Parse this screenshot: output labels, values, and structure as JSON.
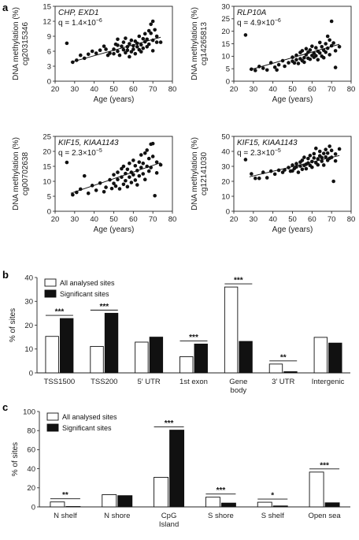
{
  "figure": {
    "panel_letters": [
      "a",
      "b",
      "c"
    ]
  },
  "chart_data": [
    {
      "panel": "a",
      "type": "scatter",
      "gene": "CHP, EXD1",
      "q_label": "q = 1.4×10",
      "q_exp": "−6",
      "xlabel": "Age (years)",
      "ylabel": "DNA methylation (%)",
      "ylabel2": "cg20315346",
      "xlim": [
        20,
        80
      ],
      "ylim": [
        0,
        15
      ],
      "xticks": [
        20,
        30,
        40,
        50,
        60,
        70,
        80
      ],
      "yticks": [
        0,
        3,
        6,
        9,
        12,
        15
      ],
      "trend": {
        "x": [
          28,
          74
        ],
        "y": [
          3.8,
          8.8
        ]
      },
      "points": [
        [
          26,
          7.6
        ],
        [
          29,
          3.8
        ],
        [
          31,
          4.2
        ],
        [
          33,
          5.2
        ],
        [
          35,
          4.6
        ],
        [
          37,
          5.4
        ],
        [
          39,
          6.0
        ],
        [
          41,
          5.6
        ],
        [
          43,
          6.2
        ],
        [
          45,
          7.0
        ],
        [
          46,
          6.4
        ],
        [
          47,
          5.2
        ],
        [
          48,
          5.6
        ],
        [
          50,
          6.4
        ],
        [
          50,
          5.5
        ],
        [
          51,
          7.4
        ],
        [
          52,
          6.0
        ],
        [
          52,
          8.4
        ],
        [
          53,
          5.2
        ],
        [
          54,
          7.0
        ],
        [
          55,
          6.3
        ],
        [
          55,
          7.8
        ],
        [
          56,
          5.7
        ],
        [
          56,
          8.6
        ],
        [
          57,
          6.9
        ],
        [
          57,
          6.2
        ],
        [
          58,
          7.5
        ],
        [
          59,
          5.9
        ],
        [
          59,
          8.2
        ],
        [
          60,
          6.4
        ],
        [
          60,
          7.1
        ],
        [
          61,
          5.5
        ],
        [
          61,
          8.0
        ],
        [
          62,
          6.9
        ],
        [
          62,
          7.6
        ],
        [
          63,
          6.3
        ],
        [
          63,
          9.0
        ],
        [
          64,
          7.3
        ],
        [
          64,
          5.9
        ],
        [
          65,
          8.5
        ],
        [
          65,
          6.6
        ],
        [
          66,
          7.9
        ],
        [
          66,
          9.5
        ],
        [
          67,
          6.9
        ],
        [
          67,
          8.4
        ],
        [
          68,
          10.1
        ],
        [
          68,
          7.4
        ],
        [
          69,
          11.4
        ],
        [
          69,
          9.6
        ],
        [
          70,
          12.0
        ],
        [
          70,
          8.2
        ],
        [
          70,
          6.1
        ],
        [
          71,
          10.3
        ],
        [
          72,
          7.8
        ],
        [
          72,
          9.0
        ],
        [
          74,
          7.8
        ],
        [
          58,
          4.9
        ],
        [
          52,
          7.2
        ]
      ]
    },
    {
      "panel": "a",
      "type": "scatter",
      "gene": "RLP10A",
      "q_label": "q = 4.9×10",
      "q_exp": "−6",
      "xlabel": "Age (years)",
      "ylabel": "DNA methylation (%)",
      "ylabel2": "cg14265813",
      "xlim": [
        20,
        80
      ],
      "ylim": [
        0,
        30
      ],
      "xticks": [
        20,
        30,
        40,
        50,
        60,
        70,
        80
      ],
      "yticks": [
        0,
        5,
        10,
        15,
        20,
        25,
        30
      ],
      "trend": {
        "x": [
          28,
          74
        ],
        "y": [
          4.5,
          14.8
        ]
      },
      "points": [
        [
          26,
          18.5
        ],
        [
          29,
          4.8
        ],
        [
          31,
          4.3
        ],
        [
          33,
          5.9
        ],
        [
          35,
          5.2
        ],
        [
          37,
          4.5
        ],
        [
          39,
          7.4
        ],
        [
          41,
          5.6
        ],
        [
          42,
          4.5
        ],
        [
          43,
          6.6
        ],
        [
          45,
          8.2
        ],
        [
          46,
          6.0
        ],
        [
          48,
          7.4
        ],
        [
          50,
          9.6
        ],
        [
          50,
          8.0
        ],
        [
          51,
          7.3
        ],
        [
          52,
          10.4
        ],
        [
          52,
          8.6
        ],
        [
          53,
          7.1
        ],
        [
          54,
          11.5
        ],
        [
          54,
          9.0
        ],
        [
          55,
          8.2
        ],
        [
          55,
          12.2
        ],
        [
          56,
          9.4
        ],
        [
          56,
          7.6
        ],
        [
          57,
          10.6
        ],
        [
          57,
          13.0
        ],
        [
          58,
          9.2
        ],
        [
          58,
          11.6
        ],
        [
          59,
          8.8
        ],
        [
          59,
          12.5
        ],
        [
          60,
          10.3
        ],
        [
          60,
          14.0
        ],
        [
          61,
          9.6
        ],
        [
          61,
          11.2
        ],
        [
          62,
          13.4
        ],
        [
          62,
          10.2
        ],
        [
          63,
          12.0
        ],
        [
          63,
          8.6
        ],
        [
          64,
          11.3
        ],
        [
          64,
          15.5
        ],
        [
          65,
          10.0
        ],
        [
          65,
          13.8
        ],
        [
          66,
          12.4
        ],
        [
          66,
          9.4
        ],
        [
          67,
          15.0
        ],
        [
          67,
          11.6
        ],
        [
          68,
          18.0
        ],
        [
          68,
          13.2
        ],
        [
          69,
          16.5
        ],
        [
          69,
          10.6
        ],
        [
          70,
          24.0
        ],
        [
          70,
          14.2
        ],
        [
          71,
          15.3
        ],
        [
          72,
          5.5
        ],
        [
          72,
          12.2
        ],
        [
          74,
          13.8
        ]
      ]
    },
    {
      "panel": "a",
      "type": "scatter",
      "gene": "KIF15, KIAA1143",
      "q_label": "q = 2.3×10",
      "q_exp": "−5",
      "xlabel": "Age (years)",
      "ylabel": "DNA methylation (%)",
      "ylabel2": "cg00702638",
      "xlim": [
        20,
        80
      ],
      "ylim": [
        0,
        25
      ],
      "xticks": [
        20,
        30,
        40,
        50,
        60,
        70,
        80
      ],
      "yticks": [
        0,
        5,
        10,
        15,
        20,
        25
      ],
      "trend": {
        "x": [
          28,
          74
        ],
        "y": [
          6.0,
          16.2
        ]
      },
      "points": [
        [
          26,
          16.3
        ],
        [
          29,
          5.5
        ],
        [
          31,
          6.3
        ],
        [
          33,
          7.4
        ],
        [
          35,
          11.8
        ],
        [
          37,
          6.0
        ],
        [
          39,
          8.6
        ],
        [
          41,
          7.0
        ],
        [
          43,
          9.4
        ],
        [
          45,
          6.5
        ],
        [
          46,
          8.0
        ],
        [
          48,
          10.5
        ],
        [
          49,
          7.6
        ],
        [
          50,
          12.2
        ],
        [
          50,
          9.3
        ],
        [
          51,
          8.4
        ],
        [
          52,
          13.0
        ],
        [
          52,
          10.6
        ],
        [
          53,
          7.5
        ],
        [
          54,
          14.2
        ],
        [
          54,
          11.4
        ],
        [
          55,
          9.0
        ],
        [
          55,
          15.0
        ],
        [
          56,
          10.2
        ],
        [
          56,
          12.6
        ],
        [
          57,
          8.2
        ],
        [
          57,
          14.0
        ],
        [
          58,
          11.4
        ],
        [
          58,
          16.0
        ],
        [
          59,
          9.6
        ],
        [
          59,
          13.0
        ],
        [
          60,
          12.2
        ],
        [
          60,
          17.0
        ],
        [
          61,
          10.4
        ],
        [
          61,
          15.2
        ],
        [
          62,
          13.6
        ],
        [
          62,
          8.8
        ],
        [
          63,
          16.4
        ],
        [
          63,
          11.8
        ],
        [
          64,
          14.6
        ],
        [
          64,
          18.8
        ],
        [
          65,
          12.5
        ],
        [
          65,
          16.0
        ],
        [
          66,
          19.4
        ],
        [
          66,
          10.6
        ],
        [
          67,
          15.0
        ],
        [
          67,
          20.4
        ],
        [
          68,
          13.4
        ],
        [
          68,
          17.6
        ],
        [
          69,
          22.4
        ],
        [
          69,
          14.6
        ],
        [
          70,
          22.6
        ],
        [
          70,
          18.3
        ],
        [
          71,
          5.2
        ],
        [
          72,
          16.4
        ],
        [
          72,
          12.8
        ],
        [
          74,
          15.5
        ]
      ]
    },
    {
      "panel": "a",
      "type": "scatter",
      "gene": "KIF15, KIAA1143",
      "q_label": "q = 2.3×10",
      "q_exp": "−5",
      "xlabel": "Age (years)",
      "ylabel": "DNA methylation (%)",
      "ylabel2": "cg12141030",
      "xlim": [
        20,
        80
      ],
      "ylim": [
        0,
        50
      ],
      "xticks": [
        20,
        30,
        40,
        50,
        60,
        70,
        80
      ],
      "yticks": [
        0,
        10,
        20,
        30,
        40,
        50
      ],
      "trend": {
        "x": [
          28,
          74
        ],
        "y": [
          23.0,
          37.2
        ]
      },
      "points": [
        [
          26,
          34.5
        ],
        [
          29,
          25.0
        ],
        [
          31,
          22.0
        ],
        [
          33,
          22.0
        ],
        [
          35,
          26.0
        ],
        [
          37,
          22.4
        ],
        [
          39,
          26.8
        ],
        [
          41,
          24.8
        ],
        [
          43,
          27.4
        ],
        [
          45,
          26.0
        ],
        [
          46,
          27.6
        ],
        [
          48,
          29.2
        ],
        [
          49,
          26.8
        ],
        [
          50,
          30.8
        ],
        [
          50,
          27.0
        ],
        [
          51,
          28.6
        ],
        [
          52,
          31.8
        ],
        [
          52,
          29.6
        ],
        [
          53,
          26.0
        ],
        [
          54,
          32.8
        ],
        [
          54,
          30.2
        ],
        [
          55,
          28.0
        ],
        [
          55,
          34.0
        ],
        [
          56,
          30.6
        ],
        [
          56,
          36.0
        ],
        [
          57,
          31.4
        ],
        [
          57,
          28.4
        ],
        [
          58,
          35.2
        ],
        [
          58,
          32.2
        ],
        [
          59,
          30.6
        ],
        [
          59,
          37.2
        ],
        [
          60,
          33.2
        ],
        [
          60,
          29.4
        ],
        [
          61,
          35.6
        ],
        [
          61,
          38.4
        ],
        [
          62,
          32.4
        ],
        [
          62,
          42.0
        ],
        [
          63,
          35.0
        ],
        [
          63,
          31.0
        ],
        [
          64,
          37.0
        ],
        [
          64,
          40.0
        ],
        [
          65,
          33.4
        ],
        [
          65,
          35.8
        ],
        [
          66,
          38.6
        ],
        [
          66,
          30.8
        ],
        [
          67,
          36.2
        ],
        [
          67,
          41.2
        ],
        [
          68,
          34.0
        ],
        [
          68,
          38.8
        ],
        [
          69,
          43.4
        ],
        [
          69,
          35.4
        ],
        [
          70,
          36.0
        ],
        [
          70,
          40.6
        ],
        [
          71,
          20.0
        ],
        [
          72,
          38.2
        ],
        [
          72,
          33.6
        ],
        [
          74,
          41.6
        ]
      ]
    },
    {
      "panel": "b",
      "type": "bar",
      "ylabel": "% of sites",
      "ylim": [
        0,
        40
      ],
      "yticks": [
        0,
        10,
        20,
        30,
        40
      ],
      "categories": [
        "TSS1500",
        "TSS200",
        "5′ UTR",
        "1st exon",
        "Gene body",
        "3′ UTR",
        "Intergenic"
      ],
      "category_lines": [
        [
          "TSS1500"
        ],
        [
          "TSS200"
        ],
        [
          "5′ UTR"
        ],
        [
          "1st exon"
        ],
        [
          "Gene",
          "body"
        ],
        [
          "3′ UTR"
        ],
        [
          "Intergenic"
        ]
      ],
      "series": [
        {
          "name": "All analysed sites",
          "values": [
            15.3,
            11.1,
            12.9,
            6.8,
            36.0,
            3.7,
            14.9
          ]
        },
        {
          "name": "Significant sites",
          "values": [
            22.8,
            25.0,
            15.0,
            12.1,
            13.2,
            0.5,
            12.5
          ]
        }
      ],
      "significance": [
        "***",
        "***",
        "",
        "***",
        "***",
        "**",
        ""
      ]
    },
    {
      "panel": "c",
      "type": "bar",
      "ylabel": "% of sites",
      "ylim": [
        0,
        100
      ],
      "yticks": [
        0,
        20,
        40,
        60,
        80,
        100
      ],
      "categories": [
        "N shelf",
        "N shore",
        "CpG Island",
        "S shore",
        "S shelf",
        "Open sea"
      ],
      "category_lines": [
        [
          "N shelf"
        ],
        [
          "N shore"
        ],
        [
          "CpG",
          "Island"
        ],
        [
          "S shore"
        ],
        [
          "S shelf"
        ],
        [
          "Open sea"
        ]
      ],
      "series": [
        {
          "name": "All analysed sites",
          "values": [
            5.2,
            12.8,
            31.0,
            10.2,
            4.9,
            36.5
          ]
        },
        {
          "name": "Significant sites",
          "values": [
            0.4,
            11.8,
            80.5,
            4.0,
            1.0,
            4.3
          ]
        }
      ],
      "significance": [
        "**",
        "",
        "***",
        "***",
        "*",
        "***"
      ]
    }
  ]
}
